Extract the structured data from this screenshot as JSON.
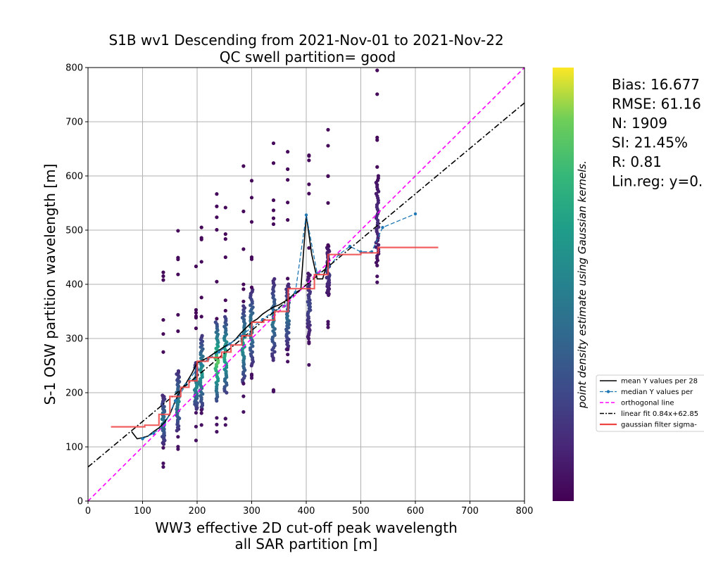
{
  "chart_data": {
    "type": "scatter",
    "title": "S1B wv1 Descending from 2021-Nov-01 to 2021-Nov-22",
    "subtitle": "QC swell partition= good",
    "xlabel": "WW3 effective 2D cut-off peak wavelength",
    "xlabel2": "all SAR partition [m]",
    "ylabel": "S-1 OSW partition wavelength [m]",
    "xlim": [
      0,
      800
    ],
    "ylim": [
      0,
      800
    ],
    "xticks": [
      "0",
      "100",
      "200",
      "300",
      "400",
      "500",
      "600",
      "700",
      "800"
    ],
    "yticks": [
      "0",
      "100",
      "200",
      "300",
      "400",
      "500",
      "600",
      "700",
      "800"
    ],
    "grid": true,
    "colorbar_label": "point density estimate using Gaussian kernels.",
    "stats": [
      "Bias: 16.677",
      "RMSE: 61.16",
      "N: 1909",
      "SI: 21.45%",
      "R: 0.81",
      "Lin.reg: y=0."
    ],
    "legend": {
      "placement": "right",
      "entries": [
        "mean Y values per 28",
        "median Y values per",
        "orthogonal line",
        "linear fit 0.84x+62.85",
        "gaussian filter sigma-"
      ]
    },
    "series": [
      {
        "name": "mean Y values per 28",
        "color": "#000000",
        "x": [
          80,
          90,
          100,
          110,
          120,
          130,
          140,
          150,
          160,
          170,
          180,
          190,
          200,
          210,
          220,
          230,
          240,
          250,
          260,
          270,
          280,
          290,
          300,
          310,
          320,
          330,
          340,
          350,
          360,
          370,
          380,
          390,
          400,
          410,
          420,
          430,
          440
        ],
        "y": [
          128,
          115,
          117,
          120,
          128,
          135,
          145,
          160,
          185,
          205,
          218,
          235,
          255,
          260,
          265,
          272,
          278,
          285,
          290,
          298,
          310,
          320,
          330,
          336,
          345,
          352,
          358,
          362,
          368,
          375,
          385,
          390,
          528,
          455,
          410,
          410,
          445
        ]
      },
      {
        "name": "median Y values per",
        "color": "#1f77b4",
        "x": [
          100,
          120,
          140,
          160,
          180,
          200,
          220,
          240,
          260,
          280,
          300,
          320,
          340,
          360,
          380,
          400,
          420,
          440,
          460,
          480,
          500,
          520,
          540,
          600
        ],
        "y": [
          115,
          125,
          140,
          185,
          215,
          245,
          262,
          275,
          290,
          305,
          320,
          335,
          350,
          360,
          385,
          528,
          420,
          430,
          455,
          470,
          460,
          460,
          505,
          530
        ]
      },
      {
        "name": "orthogonal line",
        "color": "#ff00ff",
        "x": [
          0,
          800
        ],
        "y": [
          0,
          800
        ]
      },
      {
        "name": "linear fit 0.84x+62.85",
        "color": "#000000",
        "x": [
          0,
          800
        ],
        "y": [
          62.85,
          734.85
        ]
      },
      {
        "name": "gaussian filter sigma-",
        "color": "#ef4444",
        "x": [
          42,
          104,
          104,
          130,
          130,
          150,
          150,
          170,
          170,
          185,
          185,
          200,
          200,
          220,
          220,
          245,
          245,
          262,
          262,
          282,
          282,
          300,
          300,
          322,
          322,
          342,
          342,
          367,
          367,
          415,
          415,
          440,
          440,
          500,
          500,
          532,
          532,
          642
        ],
        "y": [
          137,
          137,
          140,
          140,
          160,
          160,
          193,
          193,
          210,
          210,
          222,
          222,
          258,
          258,
          265,
          265,
          275,
          275,
          288,
          288,
          305,
          305,
          330,
          330,
          334,
          334,
          350,
          350,
          392,
          392,
          418,
          418,
          455,
          455,
          458,
          458,
          468,
          468
        ]
      }
    ],
    "points": {
      "description": "",
      "columns": [
        {
          "x": 138,
          "ymin": 105,
          "ymax": 195,
          "density": 0.45
        },
        {
          "x": 165,
          "ymin": 130,
          "ymax": 240,
          "density": 0.5
        },
        {
          "x": 198,
          "ymin": 170,
          "ymax": 255,
          "density": 0.55
        },
        {
          "x": 208,
          "ymin": 170,
          "ymax": 305,
          "density": 0.6
        },
        {
          "x": 236,
          "ymin": 185,
          "ymax": 330,
          "density": 0.85
        },
        {
          "x": 252,
          "ymin": 200,
          "ymax": 340,
          "density": 0.7
        },
        {
          "x": 285,
          "ymin": 220,
          "ymax": 360,
          "density": 0.6
        },
        {
          "x": 300,
          "ymin": 250,
          "ymax": 390,
          "density": 0.5
        },
        {
          "x": 340,
          "ymin": 260,
          "ymax": 410,
          "density": 0.45
        },
        {
          "x": 366,
          "ymin": 280,
          "ymax": 400,
          "density": 0.4
        },
        {
          "x": 405,
          "ymin": 300,
          "ymax": 420,
          "density": 0.25
        },
        {
          "x": 440,
          "ymin": 380,
          "ymax": 470,
          "density": 0.2
        },
        {
          "x": 530,
          "ymin": 440,
          "ymax": 600,
          "density": 0.15
        }
      ]
    }
  }
}
